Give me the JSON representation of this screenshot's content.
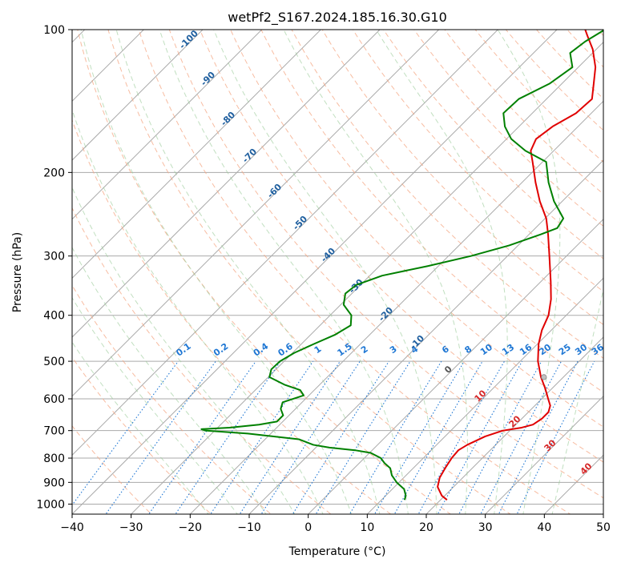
{
  "chart_data": {
    "type": "skew-t log-p",
    "title": "wetPf2_S167.2024.185.16.30.G10",
    "xlabel": "Temperature (°C)",
    "ylabel": "Pressure (hPa)",
    "xlim": [
      -40,
      50
    ],
    "ylim_hpa": [
      1050,
      100
    ],
    "y_scale": "log",
    "x_ticks": [
      "−40",
      "−30",
      "−20",
      "−10",
      "0",
      "10",
      "20",
      "30",
      "40",
      "50"
    ],
    "y_ticks": [
      "100",
      "200",
      "300",
      "400",
      "500",
      "600",
      "700",
      "800",
      "900",
      "1000"
    ],
    "isotherm_labels": [
      "-100",
      "-90",
      "-80",
      "-70",
      "-60",
      "-50",
      "-40",
      "-30",
      "-20",
      "-10",
      "0",
      "10",
      "20",
      "30",
      "40"
    ],
    "mixing_ratio_labels": [
      "0.1",
      "0.2",
      "0.4",
      "0.6",
      "1",
      "1.5",
      "2",
      "3",
      "4",
      "6",
      "8",
      "10",
      "13",
      "16",
      "20",
      "25",
      "30",
      "36"
    ],
    "series": [
      {
        "role": "temperature",
        "color": "#e00000",
        "points": [
          {
            "p": 980,
            "t": 21.1
          },
          {
            "p": 960,
            "t": 19.5
          },
          {
            "p": 920,
            "t": 17.3
          },
          {
            "p": 880,
            "t": 16.1
          },
          {
            "p": 840,
            "t": 15.4
          },
          {
            "p": 800,
            "t": 14.8
          },
          {
            "p": 770,
            "t": 14.6
          },
          {
            "p": 750,
            "t": 15.2
          },
          {
            "p": 720,
            "t": 16.8
          },
          {
            "p": 700,
            "t": 18.8
          },
          {
            "p": 690,
            "t": 21.5
          },
          {
            "p": 680,
            "t": 22.9
          },
          {
            "p": 660,
            "t": 23.4
          },
          {
            "p": 640,
            "t": 23.4
          },
          {
            "p": 620,
            "t": 22.6
          },
          {
            "p": 600,
            "t": 21.1
          },
          {
            "p": 570,
            "t": 18.8
          },
          {
            "p": 540,
            "t": 16.2
          },
          {
            "p": 500,
            "t": 13.0
          },
          {
            "p": 460,
            "t": 10.2
          },
          {
            "p": 430,
            "t": 8.4
          },
          {
            "p": 400,
            "t": 7.0
          },
          {
            "p": 370,
            "t": 4.7
          },
          {
            "p": 340,
            "t": 1.7
          },
          {
            "p": 300,
            "t": -2.9
          },
          {
            "p": 270,
            "t": -6.8
          },
          {
            "p": 250,
            "t": -9.8
          },
          {
            "p": 230,
            "t": -13.8
          },
          {
            "p": 210,
            "t": -17.7
          },
          {
            "p": 190,
            "t": -21.7
          },
          {
            "p": 180,
            "t": -23.9
          },
          {
            "p": 170,
            "t": -25.0
          },
          {
            "p": 160,
            "t": -24.3
          },
          {
            "p": 150,
            "t": -22.6
          },
          {
            "p": 140,
            "t": -22.3
          },
          {
            "p": 130,
            "t": -24.6
          },
          {
            "p": 120,
            "t": -27.1
          },
          {
            "p": 110,
            "t": -30.6
          },
          {
            "p": 103,
            "t": -33.8
          },
          {
            "p": 100,
            "t": -35.2
          }
        ]
      },
      {
        "role": "dewpoint",
        "color": "#008000",
        "points": [
          {
            "p": 980,
            "t": 13.9
          },
          {
            "p": 960,
            "t": 13.4
          },
          {
            "p": 930,
            "t": 12.0
          },
          {
            "p": 900,
            "t": 9.6
          },
          {
            "p": 870,
            "t": 7.6
          },
          {
            "p": 840,
            "t": 6.1
          },
          {
            "p": 820,
            "t": 4.3
          },
          {
            "p": 800,
            "t": 2.8
          },
          {
            "p": 780,
            "t": 0.2
          },
          {
            "p": 770,
            "t": -2.9
          },
          {
            "p": 760,
            "t": -7.7
          },
          {
            "p": 750,
            "t": -10.9
          },
          {
            "p": 730,
            "t": -14.3
          },
          {
            "p": 710,
            "t": -23.9
          },
          {
            "p": 700,
            "t": -31.6
          },
          {
            "p": 695,
            "t": -32.5
          },
          {
            "p": 690,
            "t": -28.0
          },
          {
            "p": 680,
            "t": -23.5
          },
          {
            "p": 670,
            "t": -21.0
          },
          {
            "p": 650,
            "t": -21.0
          },
          {
            "p": 630,
            "t": -22.5
          },
          {
            "p": 610,
            "t": -23.3
          },
          {
            "p": 590,
            "t": -20.9
          },
          {
            "p": 575,
            "t": -22.4
          },
          {
            "p": 560,
            "t": -26.0
          },
          {
            "p": 540,
            "t": -29.8
          },
          {
            "p": 520,
            "t": -30.8
          },
          {
            "p": 500,
            "t": -30.7
          },
          {
            "p": 480,
            "t": -29.7
          },
          {
            "p": 460,
            "t": -27.9
          },
          {
            "p": 440,
            "t": -25.9
          },
          {
            "p": 420,
            "t": -24.8
          },
          {
            "p": 400,
            "t": -26.4
          },
          {
            "p": 380,
            "t": -29.5
          },
          {
            "p": 360,
            "t": -31.1
          },
          {
            "p": 345,
            "t": -30.7
          },
          {
            "p": 330,
            "t": -27.9
          },
          {
            "p": 315,
            "t": -21.8
          },
          {
            "p": 300,
            "t": -16.2
          },
          {
            "p": 285,
            "t": -11.5
          },
          {
            "p": 270,
            "t": -8.0
          },
          {
            "p": 262,
            "t": -6.3
          },
          {
            "p": 250,
            "t": -6.9
          },
          {
            "p": 230,
            "t": -11.4
          },
          {
            "p": 210,
            "t": -15.5
          },
          {
            "p": 190,
            "t": -19.4
          },
          {
            "p": 180,
            "t": -24.8
          },
          {
            "p": 170,
            "t": -29.2
          },
          {
            "p": 160,
            "t": -32.4
          },
          {
            "p": 150,
            "t": -34.9
          },
          {
            "p": 140,
            "t": -34.7
          },
          {
            "p": 130,
            "t": -32.1
          },
          {
            "p": 120,
            "t": -31.0
          },
          {
            "p": 112,
            "t": -33.8
          },
          {
            "p": 106,
            "t": -33.2
          },
          {
            "p": 100,
            "t": -31.9
          }
        ]
      }
    ],
    "lcl_marker": {
      "p": 540,
      "t": 16.7
    }
  }
}
